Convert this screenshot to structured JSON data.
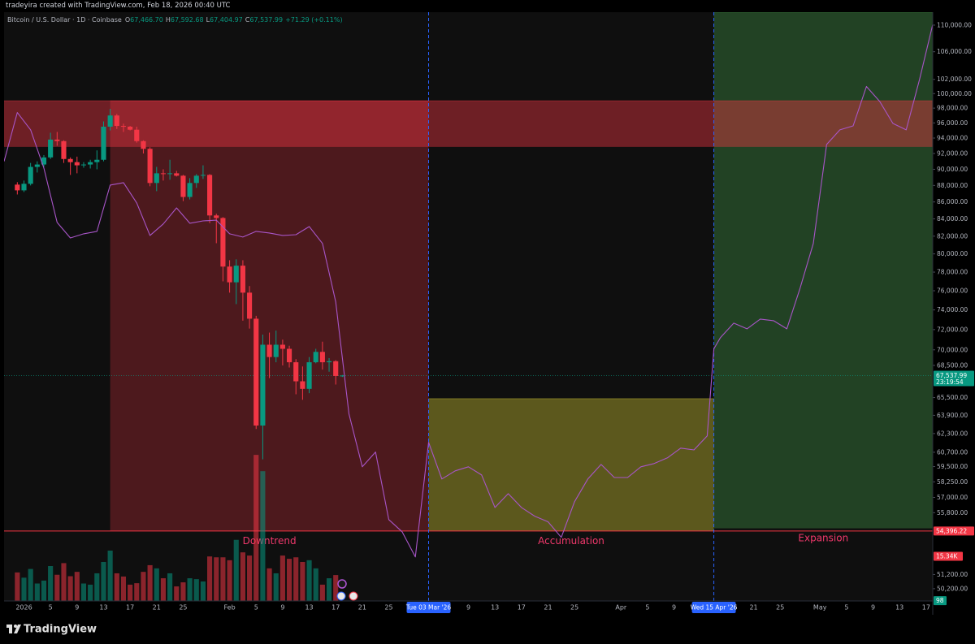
{
  "header": {
    "credit": "tradeyira created with TradingView.com, Feb 18, 2026 00:40 UTC",
    "symbol": "Bitcoin / U.S. Dollar · 1D · Coinbase",
    "ohlc": [
      [
        "O",
        "67,466.70"
      ],
      [
        "H",
        "67,592.68"
      ],
      [
        "L",
        "67,404.97"
      ],
      [
        "C",
        "67,537.99"
      ]
    ],
    "change": "+71.29 (+0.11%)"
  },
  "footer": {
    "brand": "TradingView"
  },
  "chart_data": {
    "type": "candlestick",
    "log_scale": true,
    "grid": false,
    "up_color": "#089981",
    "down_color": "#f23645",
    "xlim": [
      "2025-12-29",
      "2026-05-18"
    ],
    "ylim": [
      49350,
      112000
    ],
    "volume_lim": [
      0,
      60000
    ],
    "x": [
      "2025-12-31",
      "2026-01-01",
      "2026-01-02",
      "2026-01-03",
      "2026-01-04",
      "2026-01-05",
      "2026-01-06",
      "2026-01-07",
      "2026-01-08",
      "2026-01-09",
      "2026-01-10",
      "2026-01-11",
      "2026-01-12",
      "2026-01-13",
      "2026-01-14",
      "2026-01-15",
      "2026-01-16",
      "2026-01-17",
      "2026-01-18",
      "2026-01-19",
      "2026-01-20",
      "2026-01-21",
      "2026-01-22",
      "2026-01-23",
      "2026-01-24",
      "2026-01-25",
      "2026-01-26",
      "2026-01-27",
      "2026-01-28",
      "2026-01-29",
      "2026-01-30",
      "2026-01-31",
      "2026-02-01",
      "2026-02-02",
      "2026-02-03",
      "2026-02-04",
      "2026-02-05",
      "2026-02-06",
      "2026-02-07",
      "2026-02-08",
      "2026-02-09",
      "2026-02-10",
      "2026-02-11",
      "2026-02-12",
      "2026-02-13",
      "2026-02-14",
      "2026-02-15",
      "2026-02-16",
      "2026-02-17",
      "2026-02-18"
    ],
    "open": [
      88100,
      87400,
      88200,
      90300,
      90600,
      91500,
      93800,
      93600,
      91300,
      90900,
      90500,
      90600,
      90900,
      91200,
      95500,
      97000,
      95600,
      95500,
      95100,
      93600,
      92600,
      88300,
      89500,
      89400,
      89500,
      89200,
      86600,
      88300,
      89200,
      89300,
      84400,
      84100,
      78600,
      76900,
      78700,
      75800,
      73100,
      63000,
      70500,
      69300,
      70500,
      70100,
      68800,
      67000,
      66300,
      68800,
      69800,
      68800,
      68900,
      67466.7
    ],
    "high": [
      88400,
      88600,
      90800,
      91000,
      91800,
      94700,
      94800,
      93700,
      91500,
      91600,
      90900,
      91200,
      92400,
      96200,
      97900,
      97200,
      95900,
      95600,
      95500,
      93700,
      92800,
      90300,
      90000,
      91200,
      89800,
      89300,
      88900,
      89400,
      90500,
      89400,
      84600,
      84200,
      79300,
      79400,
      79300,
      76500,
      73400,
      71500,
      71700,
      71900,
      71000,
      70400,
      69100,
      68400,
      69300,
      70100,
      70800,
      69200,
      69000,
      67592.68
    ],
    "low": [
      86900,
      87200,
      88000,
      89600,
      90300,
      91300,
      93000,
      90800,
      89300,
      89500,
      90200,
      90100,
      90000,
      91000,
      95000,
      95200,
      94800,
      95000,
      93400,
      92000,
      87900,
      87300,
      88600,
      88700,
      89100,
      86100,
      86300,
      87700,
      88800,
      83500,
      81200,
      77000,
      75800,
      74600,
      72900,
      72100,
      62700,
      60100,
      67300,
      68800,
      68500,
      68300,
      65800,
      65300,
      65900,
      68700,
      68100,
      67900,
      66700,
      67404.97
    ],
    "close": [
      87400,
      88200,
      90300,
      90600,
      91500,
      93800,
      93600,
      91300,
      90900,
      90500,
      90600,
      90900,
      91200,
      95500,
      97000,
      95600,
      95500,
      95100,
      93600,
      92600,
      88300,
      89500,
      89400,
      89500,
      89200,
      86600,
      88300,
      89200,
      89300,
      84400,
      84100,
      78600,
      76900,
      78700,
      75800,
      73100,
      63000,
      70500,
      69300,
      70500,
      70100,
      68800,
      67000,
      66300,
      68800,
      69800,
      68800,
      68900,
      67500,
      67537.99
    ],
    "volume": [
      9800,
      8000,
      11000,
      6000,
      7000,
      12000,
      9000,
      13000,
      8500,
      10000,
      6000,
      5600,
      9500,
      13400,
      17300,
      9500,
      8400,
      5600,
      6100,
      10000,
      12300,
      11200,
      7800,
      9500,
      5000,
      6400,
      7800,
      7500,
      6700,
      15300,
      15000,
      15000,
      14000,
      21000,
      16700,
      15600,
      50200,
      44600,
      11200,
      9500,
      15600,
      14500,
      15000,
      13400,
      14000,
      11200,
      5600,
      7800,
      8900,
      98
    ],
    "projection": {
      "color": "#a855c8",
      "x": [
        "2025-12-29",
        "2025-12-31",
        "2026-01-02",
        "2026-01-04",
        "2026-01-06",
        "2026-01-08",
        "2026-01-10",
        "2026-01-12",
        "2026-01-14",
        "2026-01-16",
        "2026-01-18",
        "2026-01-20",
        "2026-01-22",
        "2026-01-24",
        "2026-01-26",
        "2026-01-28",
        "2026-01-30",
        "2026-02-01",
        "2026-02-03",
        "2026-02-05",
        "2026-02-07",
        "2026-02-09",
        "2026-02-11",
        "2026-02-13",
        "2026-02-15",
        "2026-02-17",
        "2026-02-19",
        "2026-02-21",
        "2026-02-23",
        "2026-02-25",
        "2026-02-27",
        "2026-03-01",
        "2026-03-03",
        "2026-03-05",
        "2026-03-07",
        "2026-03-09",
        "2026-03-11",
        "2026-03-13",
        "2026-03-15",
        "2026-03-17",
        "2026-03-19",
        "2026-03-21",
        "2026-03-23",
        "2026-03-25",
        "2026-03-27",
        "2026-03-29",
        "2026-03-31",
        "2026-04-02",
        "2026-04-04",
        "2026-04-06",
        "2026-04-08",
        "2026-04-10",
        "2026-04-12",
        "2026-04-14",
        "2026-04-15",
        "2026-04-16",
        "2026-04-18",
        "2026-04-20",
        "2026-04-22",
        "2026-04-24",
        "2026-04-26",
        "2026-04-28",
        "2026-04-30",
        "2026-05-02",
        "2026-05-04",
        "2026-05-06",
        "2026-05-08",
        "2026-05-10",
        "2026-05-12",
        "2026-05-14",
        "2026-05-16",
        "2026-05-18"
      ],
      "values": [
        91000,
        97400,
        95080,
        90150,
        83580,
        81800,
        82270,
        82550,
        88040,
        88340,
        85880,
        82080,
        83400,
        85290,
        83490,
        83760,
        83850,
        82270,
        81900,
        82550,
        82360,
        82080,
        82170,
        83100,
        81170,
        74830,
        64020,
        59480,
        60720,
        55270,
        54340,
        52470,
        61540,
        58480,
        59150,
        59480,
        58810,
        56210,
        57300,
        56210,
        55530,
        55100,
        53920,
        56660,
        58480,
        59680,
        58600,
        58600,
        59480,
        59750,
        60230,
        61050,
        60900,
        62090,
        70100,
        71200,
        72650,
        72080,
        73060,
        72900,
        72080,
        76270,
        81170,
        93160,
        95080,
        95610,
        101000,
        98910,
        95930,
        95080,
        101970,
        110100
      ]
    },
    "zones": [
      {
        "name": "Downtrend",
        "x": [
          "2026-01-14",
          "2026-03-03"
        ],
        "y": [
          54396.22,
          99000
        ],
        "color": "rgba(242,54,69,0.28)",
        "label_color": "#f0386b"
      },
      {
        "name": "Accumulation",
        "x": [
          "2026-03-03",
          "2026-04-15"
        ],
        "y": [
          54396.22,
          65400
        ],
        "color": "rgba(200,190,50,0.42)",
        "label_color": "#f0386b"
      },
      {
        "name": "Expansion",
        "x": [
          "2026-04-15",
          "2026-05-18"
        ],
        "y": [
          54600,
          112000
        ],
        "color": "rgba(76,175,80,0.32)",
        "label_color": "#f0386b"
      },
      {
        "x": [
          "2025-12-29",
          "2026-05-18"
        ],
        "y": [
          92850,
          99000
        ],
        "color": "rgba(242,54,69,0.42)"
      }
    ],
    "price_tags": [
      {
        "value": 67537.99,
        "label": "67,537.99",
        "sublabel": "23:19:54",
        "color": "#089981",
        "line": "dotted"
      },
      {
        "value": 54396.22,
        "label": "54,396.22",
        "color": "#f23645",
        "line": "solid"
      }
    ],
    "volume_tags": [
      {
        "value": 15340,
        "label": "15.34K",
        "color": "#f23645"
      },
      {
        "value": 98,
        "label": "98",
        "color": "#089981"
      }
    ],
    "markers": [
      {
        "value": "2026-03-03",
        "label": "Tue 03 Mar '26",
        "color": "#2962ff"
      },
      {
        "value": "2026-04-15",
        "label": "Wed 15 Apr '26",
        "color": "#2962ff"
      }
    ],
    "yticks": [
      {
        "value": 110000,
        "label": "110,000.00"
      },
      {
        "value": 106000,
        "label": "106,000.00"
      },
      {
        "value": 102000,
        "label": "102,000.00"
      },
      {
        "value": 100000,
        "label": "100,000.00"
      },
      {
        "value": 98000,
        "label": "98,000.00"
      },
      {
        "value": 96000,
        "label": "96,000.00"
      },
      {
        "value": 94000,
        "label": "94,000.00"
      },
      {
        "value": 92000,
        "label": "92,000.00"
      },
      {
        "value": 90000,
        "label": "90,000.00"
      },
      {
        "value": 88000,
        "label": "88,000.00"
      },
      {
        "value": 86000,
        "label": "86,000.00"
      },
      {
        "value": 84000,
        "label": "84,000.00"
      },
      {
        "value": 82000,
        "label": "82,000.00"
      },
      {
        "value": 80000,
        "label": "80,000.00"
      },
      {
        "value": 78000,
        "label": "78,000.00"
      },
      {
        "value": 76000,
        "label": "76,000.00"
      },
      {
        "value": 74000,
        "label": "74,000.00"
      },
      {
        "value": 72000,
        "label": "72,000.00"
      },
      {
        "value": 70000,
        "label": "70,000.00"
      },
      {
        "value": 68500,
        "label": "68,500.00"
      },
      {
        "value": 65500,
        "label": "65,500.00"
      },
      {
        "value": 63900,
        "label": "63,900.00"
      },
      {
        "value": 62300,
        "label": "62,300.00"
      },
      {
        "value": 60700,
        "label": "60,700.00"
      },
      {
        "value": 59500,
        "label": "59,500.00"
      },
      {
        "value": 58250,
        "label": "58,250.00"
      },
      {
        "value": 57000,
        "label": "57,000.00"
      },
      {
        "value": 55800,
        "label": "55,800.00"
      },
      {
        "value": 51200,
        "label": "51,200.00"
      },
      {
        "value": 50200,
        "label": "50,200.00"
      }
    ],
    "xticks": [
      {
        "value": "2026-01-01",
        "label": "2026"
      },
      {
        "value": "2026-01-05",
        "label": "5"
      },
      {
        "value": "2026-01-09",
        "label": "9"
      },
      {
        "value": "2026-01-13",
        "label": "13"
      },
      {
        "value": "2026-01-17",
        "label": "17"
      },
      {
        "value": "2026-01-21",
        "label": "21"
      },
      {
        "value": "2026-01-25",
        "label": "25"
      },
      {
        "value": "2026-02-01",
        "label": "Feb"
      },
      {
        "value": "2026-02-05",
        "label": "5"
      },
      {
        "value": "2026-02-09",
        "label": "9"
      },
      {
        "value": "2026-02-13",
        "label": "13"
      },
      {
        "value": "2026-02-17",
        "label": "17"
      },
      {
        "value": "2026-02-21",
        "label": "21"
      },
      {
        "value": "2026-02-25",
        "label": "25"
      },
      {
        "value": "2026-03-09",
        "label": "9"
      },
      {
        "value": "2026-03-13",
        "label": "13"
      },
      {
        "value": "2026-03-17",
        "label": "17"
      },
      {
        "value": "2026-03-21",
        "label": "21"
      },
      {
        "value": "2026-03-25",
        "label": "25"
      },
      {
        "value": "2026-04-01",
        "label": "Apr"
      },
      {
        "value": "2026-04-05",
        "label": "5"
      },
      {
        "value": "2026-04-09",
        "label": "9"
      },
      {
        "value": "2026-04-21",
        "label": "21"
      },
      {
        "value": "2026-04-25",
        "label": "25"
      },
      {
        "value": "2026-05-01",
        "label": "May"
      },
      {
        "value": "2026-05-05",
        "label": "5"
      },
      {
        "value": "2026-05-09",
        "label": "9"
      },
      {
        "value": "2026-05-13",
        "label": "13"
      },
      {
        "value": "2026-05-17",
        "label": "17"
      }
    ]
  }
}
